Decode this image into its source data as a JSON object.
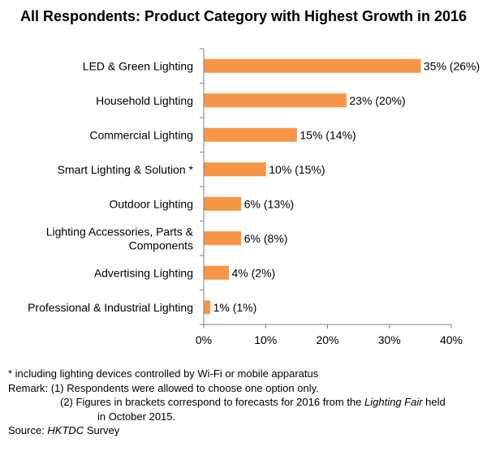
{
  "chart_data": {
    "type": "bar",
    "orientation": "horizontal",
    "title": "All Respondents: Product Category with Highest Growth in 2016",
    "categories": [
      "LED & Green Lighting",
      "Household Lighting",
      "Commercial Lighting",
      "Smart Lighting & Solution *",
      "Outdoor Lighting",
      [
        "Lighting Accessories, Parts &",
        "Components"
      ],
      "Advertising Lighting",
      "Professional & Industrial Lighting"
    ],
    "values": [
      35,
      23,
      15,
      10,
      6,
      6,
      4,
      1
    ],
    "data_labels": [
      "35% (26%)",
      "23% (20%)",
      "15% (14%)",
      "10% (15%)",
      "6% (13%)",
      "6% (8%)",
      "4% (2%)",
      "1% (1%)"
    ],
    "xlim": [
      0,
      40
    ],
    "x_ticks": [
      "0%",
      "10%",
      "20%",
      "30%",
      "40%"
    ],
    "xlabel": "",
    "ylabel": "",
    "grid": false,
    "bar_color": "#F79646"
  },
  "notes": {
    "footnote": "* including lighting devices controlled by Wi-Fi or mobile apparatus",
    "remark_1": "Remark: (1) Respondents were allowed to choose one option only.",
    "remark_2_pre": "(2) Figures in brackets correspond to forecasts for 2016 from the ",
    "remark_2_em": "Lighting Fair",
    "remark_2_post": " held",
    "remark_2_line2": "in October 2015.",
    "source_label": "Source: ",
    "source_em": "HKTDC",
    "source_post": " Survey"
  }
}
